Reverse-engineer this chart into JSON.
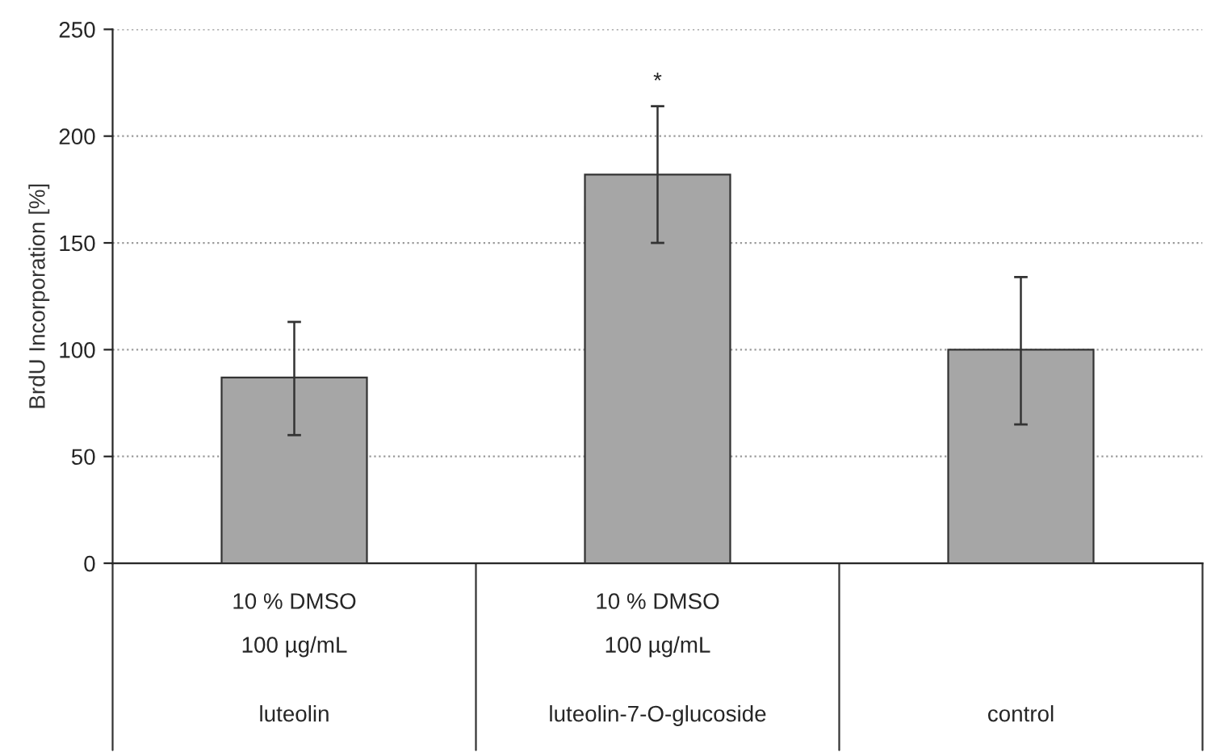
{
  "chart_data": {
    "type": "bar",
    "ylabel": "BrdU Incorporation [%]",
    "categories": [
      "luteolin",
      "luteolin-7-O-glucoside",
      "control"
    ],
    "values": [
      87,
      182,
      100
    ],
    "errors": [
      [
        60,
        113
      ],
      [
        150,
        214
      ],
      [
        65,
        134
      ]
    ],
    "color": "#a6a6a6",
    "ylim": [
      0,
      250
    ],
    "yticks": [
      0,
      50,
      100,
      150,
      200,
      250
    ],
    "grid": "y",
    "annotations": [
      "*",
      "10 % DMSO\n100 µg/mL",
      "10 % DMSO\n100 µg/mL"
    ]
  }
}
